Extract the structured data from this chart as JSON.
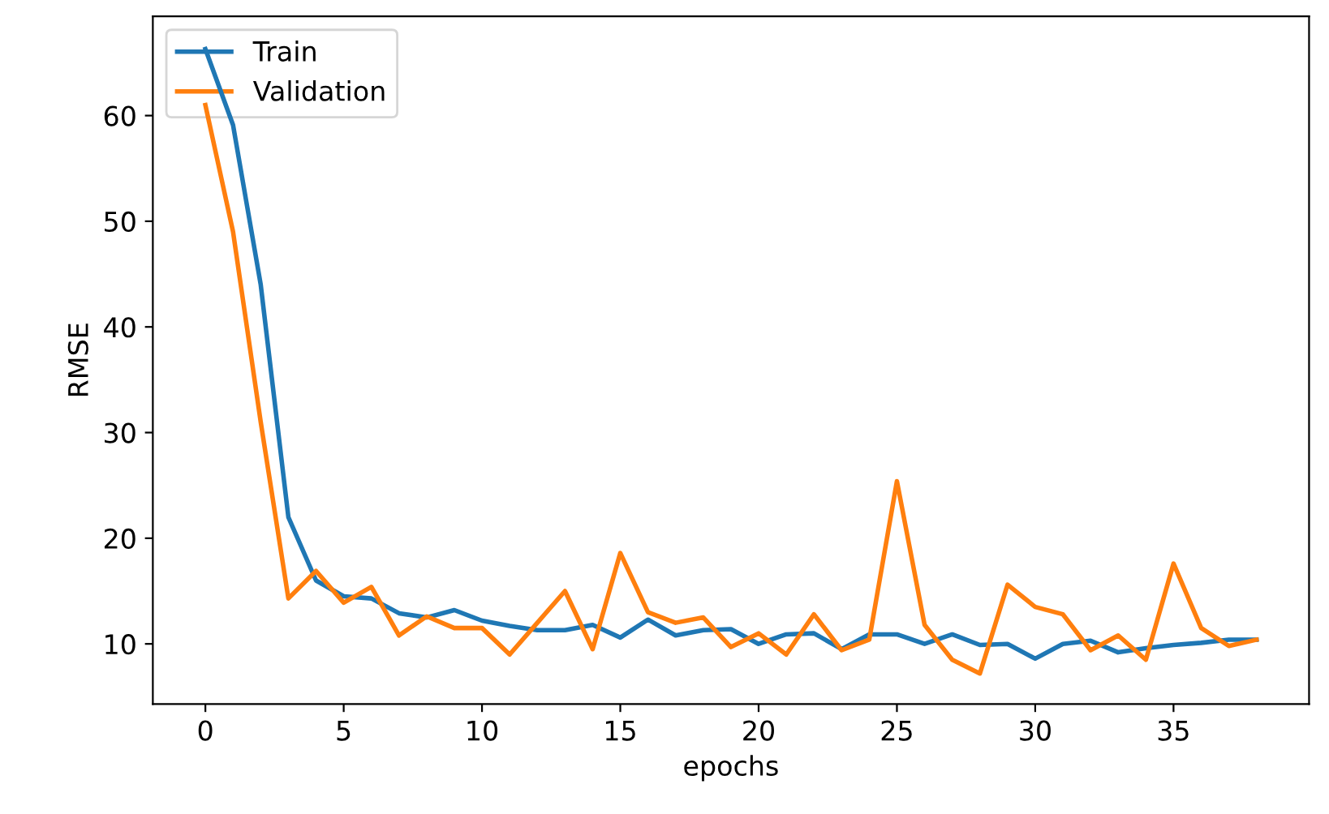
{
  "chart_data": {
    "type": "line",
    "xlabel": "epochs",
    "ylabel": "RMSE",
    "xlim": [
      -1.9,
      39.9
    ],
    "ylim": [
      4.3,
      69.4
    ],
    "xticks": [
      0,
      5,
      10,
      15,
      20,
      25,
      30,
      35
    ],
    "yticks": [
      10,
      20,
      30,
      40,
      50,
      60
    ],
    "legend": "top left",
    "grid": false,
    "marker": "none",
    "line_style": "solid",
    "x": [
      0,
      1,
      2,
      3,
      4,
      5,
      6,
      7,
      8,
      9,
      10,
      11,
      12,
      13,
      14,
      15,
      16,
      17,
      18,
      19,
      20,
      21,
      22,
      23,
      24,
      25,
      26,
      27,
      28,
      29,
      30,
      31,
      32,
      33,
      34,
      35,
      36,
      37,
      38
    ],
    "series": [
      {
        "name": "Train",
        "color": "#1f77b4",
        "values": [
          66.3,
          59.1,
          44,
          22,
          16,
          14.5,
          14.3,
          12.9,
          12.5,
          13.2,
          12.2,
          11.7,
          11.3,
          11.3,
          11.8,
          10.6,
          12.3,
          10.8,
          11.3,
          11.4,
          10.0,
          10.9,
          11.0,
          9.5,
          10.9,
          10.9,
          10.0,
          10.9,
          9.9,
          10.0,
          8.6,
          10.0,
          10.3,
          9.2,
          9.6,
          9.9,
          10.1,
          10.4,
          10.4
        ]
      },
      {
        "name": "Validation",
        "color": "#ff7f0e",
        "values": [
          61,
          49,
          31,
          14.3,
          16.9,
          13.9,
          15.4,
          10.8,
          12.6,
          11.5,
          11.5,
          9.0,
          12.0,
          15.0,
          9.5,
          18.6,
          13.0,
          12.0,
          12.5,
          9.7,
          11.0,
          9.0,
          12.8,
          9.4,
          10.4,
          25.4,
          11.8,
          8.5,
          7.2,
          15.6,
          13.5,
          12.8,
          9.4,
          10.8,
          8.5,
          17.6,
          11.5,
          9.8,
          10.4
        ]
      }
    ]
  }
}
